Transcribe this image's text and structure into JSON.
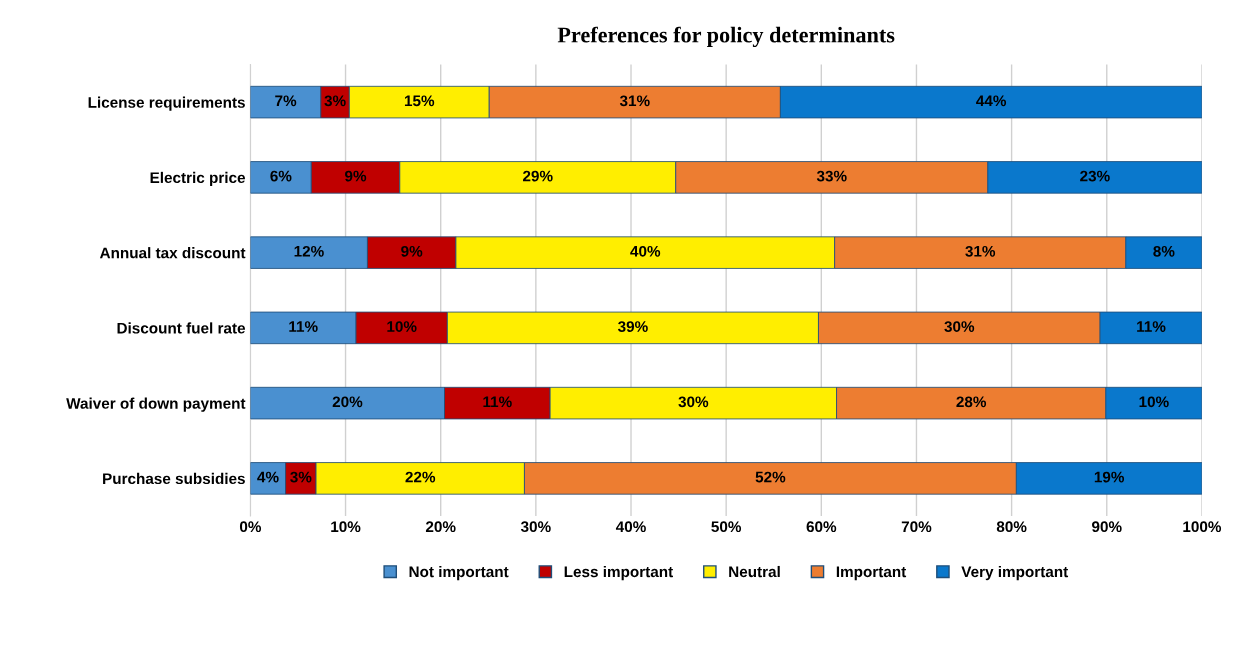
{
  "chart_data": {
    "type": "bar",
    "orientation": "horizontal",
    "stacked": true,
    "title": "Preferences for policy determinants",
    "categories": [
      "License requirements",
      "Electric price",
      "Annual tax discount",
      "Discount fuel rate",
      "Waiver of down payment",
      "Purchase subsidies"
    ],
    "series": [
      {
        "name": "Not important",
        "color": "#4a90d0",
        "values": [
          7.4,
          6.4,
          12.3,
          11.1,
          20.4,
          3.7
        ],
        "value_labels": [
          "7%",
          "6%",
          "12%",
          "11%",
          "20%",
          "4%"
        ]
      },
      {
        "name": "Less important",
        "color": "#c00000",
        "values": [
          3.0,
          9.3,
          9.3,
          9.6,
          11.1,
          3.2
        ],
        "value_labels": [
          "3%",
          "9%",
          "9%",
          "10%",
          "11%",
          "3%"
        ]
      },
      {
        "name": "Neutral",
        "color": "#ffee00",
        "values": [
          14.7,
          29.0,
          39.8,
          39.0,
          30.1,
          21.9
        ],
        "value_labels": [
          "15%",
          "29%",
          "40%",
          "39%",
          "30%",
          "22%"
        ]
      },
      {
        "name": "Important",
        "color": "#ed7d31",
        "values": [
          30.6,
          32.8,
          30.6,
          29.6,
          28.3,
          51.7
        ],
        "value_labels": [
          "31%",
          "33%",
          "31%",
          "30%",
          "28%",
          "52%"
        ]
      },
      {
        "name": "Very important",
        "color": "#0a78cc",
        "values": [
          44.3,
          22.5,
          8.0,
          10.7,
          10.1,
          19.5
        ],
        "value_labels": [
          "44%",
          "23%",
          "8%",
          "11%",
          "10%",
          "19%"
        ]
      }
    ],
    "xlim": [
      0,
      100
    ],
    "xticks": [
      {
        "value": 0,
        "label": "0%"
      },
      {
        "value": 10,
        "label": "10%"
      },
      {
        "value": 20,
        "label": "20%"
      },
      {
        "value": 30,
        "label": "30%"
      },
      {
        "value": 40,
        "label": "40%"
      },
      {
        "value": 50,
        "label": "50%"
      },
      {
        "value": 60,
        "label": "60%"
      },
      {
        "value": 70,
        "label": "70%"
      },
      {
        "value": 80,
        "label": "80%"
      },
      {
        "value": 90,
        "label": "90%"
      },
      {
        "value": 100,
        "label": "100%"
      }
    ],
    "grid": "x",
    "legend": "bottom"
  }
}
